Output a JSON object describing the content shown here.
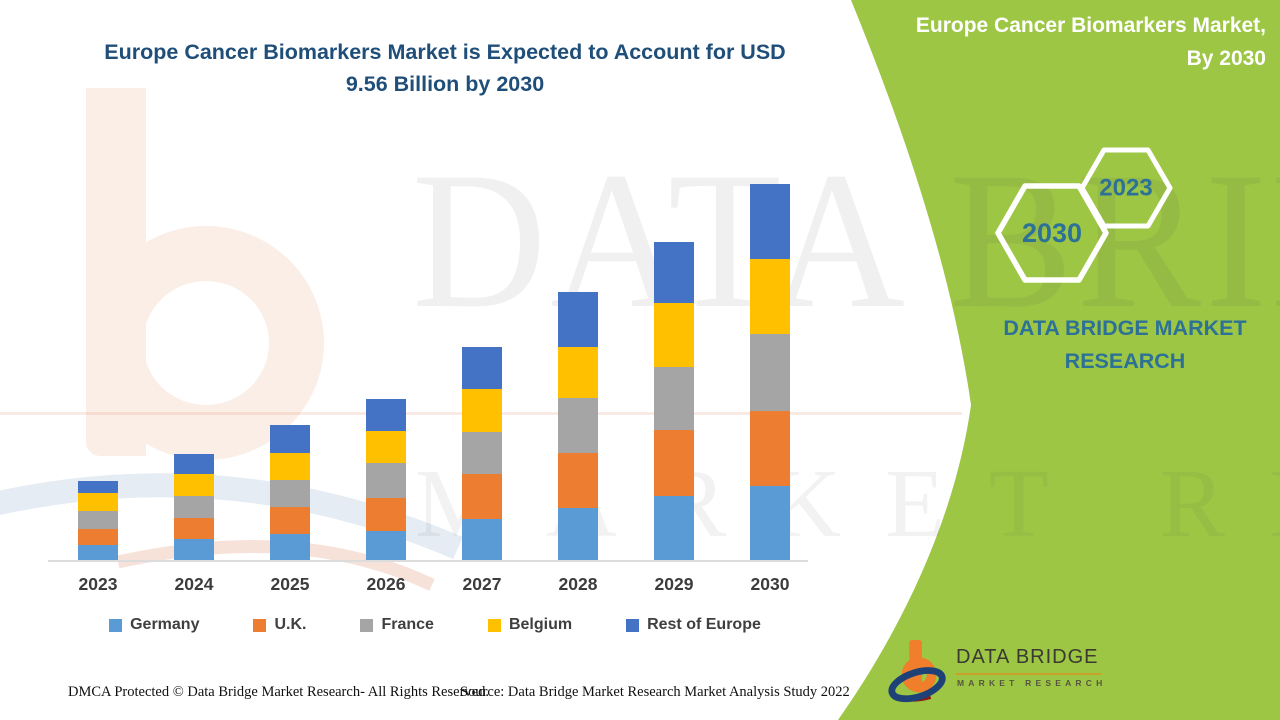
{
  "header": {
    "title_line1": "Europe Cancer Biomarkers Market is Expected to Account for USD",
    "title_line2": "9.56 Billion by 2030"
  },
  "chart_data": {
    "type": "bar",
    "stacked": true,
    "title": "Europe Cancer Biomarkers Market is Expected to Account for USD 9.56 Billion by 2030",
    "unit": "USD Billion",
    "categories": [
      "2023",
      "2024",
      "2025",
      "2026",
      "2027",
      "2028",
      "2029",
      "2030"
    ],
    "series": [
      {
        "name": "Germany",
        "color": "#5b9bd5",
        "values": [
          0.38,
          0.53,
          0.65,
          0.74,
          1.04,
          1.33,
          1.63,
          1.88
        ]
      },
      {
        "name": "U.K.",
        "color": "#ed7d31",
        "values": [
          0.41,
          0.55,
          0.7,
          0.85,
          1.16,
          1.4,
          1.68,
          1.92
        ]
      },
      {
        "name": "France",
        "color": "#a5a5a5",
        "values": [
          0.46,
          0.55,
          0.68,
          0.87,
          1.06,
          1.4,
          1.61,
          1.94
        ]
      },
      {
        "name": "Belgium",
        "color": "#ffc000",
        "values": [
          0.45,
          0.55,
          0.7,
          0.82,
          1.09,
          1.3,
          1.61,
          1.92
        ]
      },
      {
        "name": "Rest of Europe",
        "color": "#4472c4",
        "values": [
          0.32,
          0.51,
          0.7,
          0.83,
          1.08,
          1.4,
          1.57,
          1.9
        ]
      }
    ],
    "stack_totals_usd_billion": [
      2.02,
      2.69,
      3.43,
      4.11,
      5.43,
      6.83,
      8.1,
      9.56
    ],
    "ylim": [
      0,
      10
    ],
    "grid": false,
    "legend_position": "bottom"
  },
  "side_panel": {
    "title_line1": "Europe Cancer Biomarkers Market,",
    "title_line2": "By 2030",
    "hexagons": [
      {
        "label": "2030"
      },
      {
        "label": "2023"
      }
    ],
    "brand_text": "DATA BRIDGE MARKET RESEARCH",
    "accent_green": "#9dc644",
    "accent_teal": "#2d7296"
  },
  "logo": {
    "name": "DATA BRIDGE",
    "subtitle": "MARKET RESEARCH"
  },
  "watermark": {
    "line1": "DATA BRIDGE",
    "line2": "MARKET RESEARCH"
  },
  "footer": {
    "left": "DMCA Protected © Data Bridge Market Research- All Rights Reserved.",
    "right": "Source: Data Bridge Market Research Market Analysis Study 2022"
  }
}
